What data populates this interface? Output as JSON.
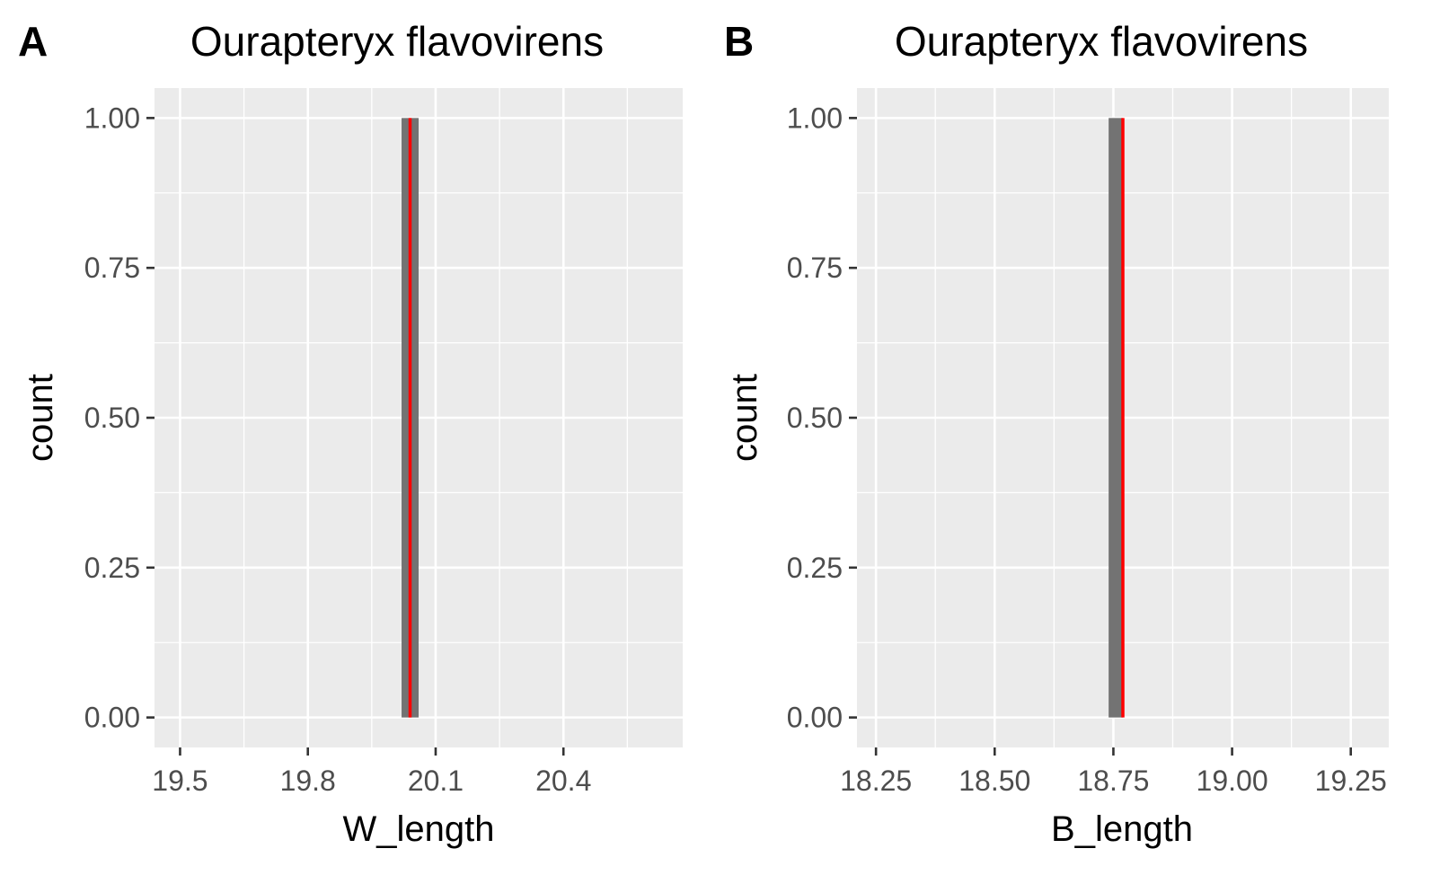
{
  "colors": {
    "panel_background": "#ebebeb",
    "grid": "#ffffff",
    "bar_fill": "#737373",
    "mean_line": "#ff0000",
    "tick_text": "#4d4d4d"
  },
  "chart_data": [
    {
      "type": "bar",
      "panel_label": "A",
      "title": "Ourapteryx flavovirens",
      "xlabel": "W_length",
      "ylabel": "count",
      "xlim": [
        19.44,
        20.68
      ],
      "ylim": [
        -0.05,
        1.05
      ],
      "x_ticks": [
        19.5,
        19.8,
        20.1,
        20.4
      ],
      "x_tick_labels": [
        "19.5",
        "19.8",
        "20.1",
        "20.4"
      ],
      "y_ticks": [
        0,
        0.25,
        0.5,
        0.75,
        1
      ],
      "y_tick_labels": [
        "0.00",
        "0.25",
        "0.50",
        "0.75",
        "1.00"
      ],
      "grid": true,
      "bars": [
        {
          "xmin": 20.02,
          "xmax": 20.06,
          "count": 1
        }
      ],
      "vline": {
        "x": 20.04
      }
    },
    {
      "type": "bar",
      "panel_label": "B",
      "title": "Ourapteryx flavovirens",
      "xlabel": "B_length",
      "ylabel": "count",
      "xlim": [
        18.21,
        19.33
      ],
      "ylim": [
        -0.05,
        1.05
      ],
      "x_ticks": [
        18.25,
        18.5,
        18.75,
        19.0,
        19.25
      ],
      "x_tick_labels": [
        "18.25",
        "18.50",
        "18.75",
        "19.00",
        "19.25"
      ],
      "y_ticks": [
        0,
        0.25,
        0.5,
        0.75,
        1
      ],
      "y_tick_labels": [
        "0.00",
        "0.25",
        "0.50",
        "0.75",
        "1.00"
      ],
      "grid": true,
      "bars": [
        {
          "xmin": 18.74,
          "xmax": 18.77,
          "count": 1
        }
      ],
      "vline": {
        "x": 18.77
      }
    }
  ]
}
